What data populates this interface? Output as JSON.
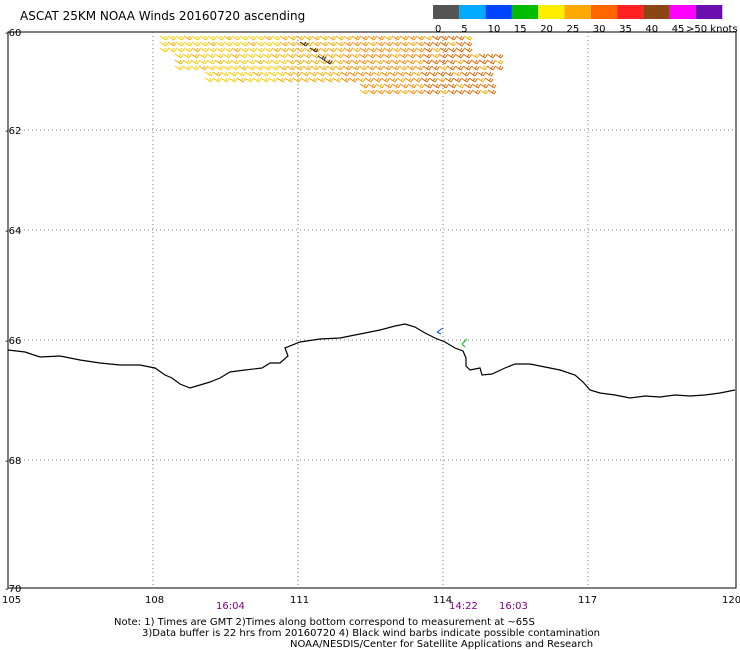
{
  "title": "ASCAT 25KM NOAA Winds 20160720 ascending",
  "legend": {
    "ticks": [
      "0",
      "5",
      "10",
      "15",
      "20",
      "25",
      "30",
      "35",
      "40",
      "45"
    ],
    "end_label": ">50 knots",
    "colors": [
      "#555555",
      "#00aaff",
      "#0044ff",
      "#00bb00",
      "#ffee00",
      "#ffaa00",
      "#ff6600",
      "#ff2222",
      "#8b4513",
      "#ff00ff",
      "#6a0dad"
    ]
  },
  "map": {
    "lon_labels": [
      "105",
      "108",
      "111",
      "114",
      "117",
      "120"
    ],
    "lat_labels": [
      "-60",
      "-62",
      "-64",
      "-66",
      "-68",
      "-70"
    ],
    "pass_times": [
      "16:04",
      "14:22",
      "16:03"
    ],
    "barb_colors": [
      "#ffcc00",
      "#ffaa00",
      "#ff8800",
      "#dd6600",
      "#222222"
    ]
  },
  "notes": {
    "line1": "Note: 1) Times are GMT 2)Times along bottom correspond to measurement at ~65S",
    "line2": "3)Data buffer is 22 hrs from 20160720 4) Black wind barbs indicate possible contamination",
    "line3": "NOAA/NESDIS/Center for Satellite Applications and Research"
  }
}
